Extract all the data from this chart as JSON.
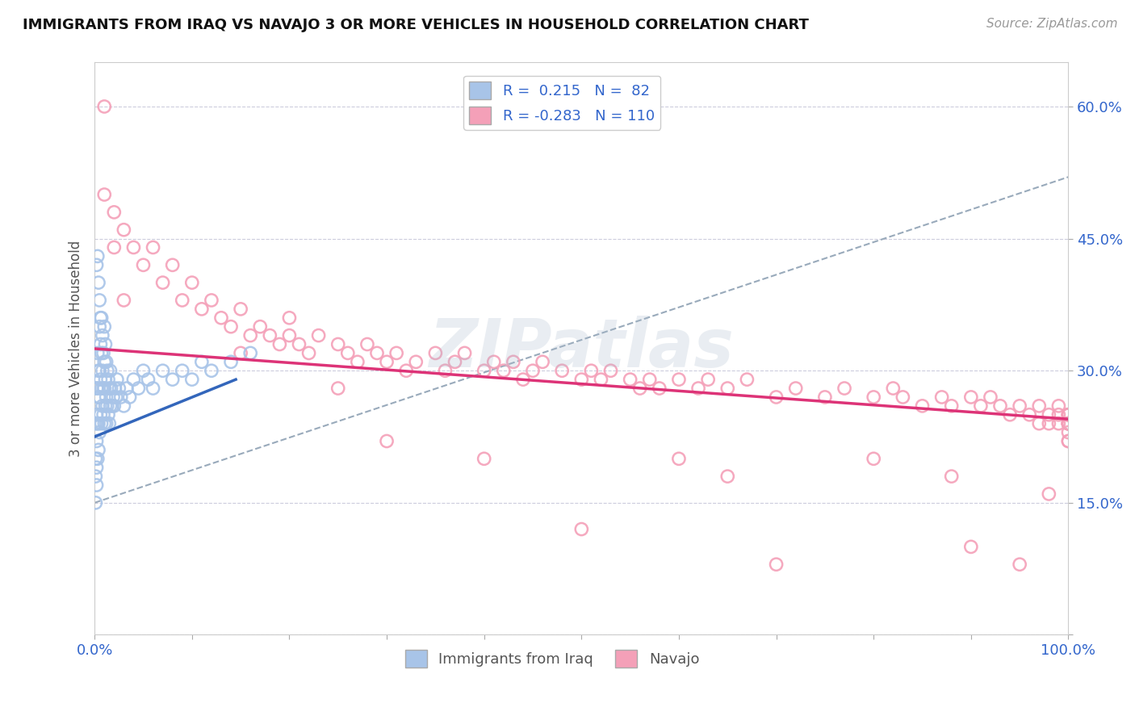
{
  "title": "IMMIGRANTS FROM IRAQ VS NAVAJO 3 OR MORE VEHICLES IN HOUSEHOLD CORRELATION CHART",
  "source": "Source: ZipAtlas.com",
  "ylabel": "3 or more Vehicles in Household",
  "xlim": [
    0.0,
    1.0
  ],
  "ylim": [
    0.0,
    0.65
  ],
  "xticks": [
    0.0,
    0.1,
    0.2,
    0.3,
    0.4,
    0.5,
    0.6,
    0.7,
    0.8,
    0.9,
    1.0
  ],
  "xticklabels": [
    "0.0%",
    "",
    "",
    "",
    "",
    "",
    "",
    "",
    "",
    "",
    "100.0%"
  ],
  "yticks": [
    0.0,
    0.15,
    0.3,
    0.45,
    0.6
  ],
  "yticklabels": [
    "",
    "15.0%",
    "30.0%",
    "45.0%",
    "60.0%"
  ],
  "legend_labels": [
    "Immigrants from Iraq",
    "Navajo"
  ],
  "blue_R": 0.215,
  "blue_N": 82,
  "pink_R": -0.283,
  "pink_N": 110,
  "blue_color": "#a8c4e8",
  "pink_color": "#f4a0b8",
  "blue_line_color": "#3366bb",
  "pink_line_color": "#dd3377",
  "dash_color": "#99aabb",
  "watermark": "ZIPatlas",
  "blue_scatter_x": [
    0.001,
    0.001,
    0.001,
    0.001,
    0.002,
    0.002,
    0.002,
    0.002,
    0.002,
    0.003,
    0.003,
    0.003,
    0.003,
    0.004,
    0.004,
    0.004,
    0.004,
    0.005,
    0.005,
    0.005,
    0.005,
    0.006,
    0.006,
    0.006,
    0.007,
    0.007,
    0.007,
    0.007,
    0.008,
    0.008,
    0.008,
    0.009,
    0.009,
    0.009,
    0.01,
    0.01,
    0.01,
    0.01,
    0.011,
    0.011,
    0.011,
    0.012,
    0.012,
    0.012,
    0.013,
    0.013,
    0.014,
    0.014,
    0.015,
    0.015,
    0.016,
    0.016,
    0.017,
    0.018,
    0.019,
    0.02,
    0.021,
    0.022,
    0.023,
    0.025,
    0.027,
    0.03,
    0.033,
    0.036,
    0.04,
    0.045,
    0.05,
    0.055,
    0.06,
    0.07,
    0.08,
    0.09,
    0.1,
    0.11,
    0.12,
    0.14,
    0.16,
    0.002,
    0.003,
    0.004,
    0.005,
    0.006
  ],
  "blue_scatter_y": [
    0.24,
    0.2,
    0.18,
    0.15,
    0.28,
    0.25,
    0.22,
    0.19,
    0.17,
    0.32,
    0.28,
    0.24,
    0.2,
    0.3,
    0.27,
    0.24,
    0.21,
    0.35,
    0.3,
    0.27,
    0.23,
    0.33,
    0.29,
    0.25,
    0.36,
    0.32,
    0.28,
    0.24,
    0.34,
    0.3,
    0.26,
    0.32,
    0.28,
    0.25,
    0.35,
    0.31,
    0.28,
    0.24,
    0.33,
    0.29,
    0.26,
    0.31,
    0.27,
    0.24,
    0.3,
    0.26,
    0.29,
    0.25,
    0.28,
    0.24,
    0.3,
    0.26,
    0.28,
    0.26,
    0.27,
    0.26,
    0.28,
    0.27,
    0.29,
    0.28,
    0.27,
    0.26,
    0.28,
    0.27,
    0.29,
    0.28,
    0.3,
    0.29,
    0.28,
    0.3,
    0.29,
    0.3,
    0.29,
    0.31,
    0.3,
    0.31,
    0.32,
    0.42,
    0.43,
    0.4,
    0.38,
    0.36
  ],
  "pink_scatter_x": [
    0.01,
    0.01,
    0.02,
    0.03,
    0.04,
    0.05,
    0.06,
    0.07,
    0.08,
    0.09,
    0.1,
    0.11,
    0.12,
    0.13,
    0.14,
    0.15,
    0.16,
    0.17,
    0.18,
    0.19,
    0.2,
    0.21,
    0.22,
    0.23,
    0.25,
    0.26,
    0.27,
    0.28,
    0.29,
    0.3,
    0.31,
    0.32,
    0.33,
    0.35,
    0.36,
    0.37,
    0.38,
    0.4,
    0.41,
    0.42,
    0.43,
    0.44,
    0.45,
    0.46,
    0.48,
    0.5,
    0.51,
    0.52,
    0.53,
    0.55,
    0.56,
    0.57,
    0.58,
    0.6,
    0.62,
    0.63,
    0.65,
    0.67,
    0.7,
    0.72,
    0.75,
    0.77,
    0.8,
    0.82,
    0.83,
    0.85,
    0.87,
    0.88,
    0.9,
    0.91,
    0.92,
    0.93,
    0.94,
    0.95,
    0.96,
    0.97,
    0.97,
    0.98,
    0.98,
    0.99,
    0.99,
    0.99,
    1.0,
    1.0,
    1.0,
    1.0,
    1.0,
    1.0,
    1.0,
    1.0,
    1.0,
    1.0,
    1.0,
    1.0,
    0.02,
    0.03,
    0.15,
    0.2,
    0.25,
    0.3,
    0.4,
    0.5,
    0.6,
    0.65,
    0.7,
    0.8,
    0.88,
    0.9,
    0.95,
    0.98
  ],
  "pink_scatter_y": [
    0.6,
    0.5,
    0.48,
    0.46,
    0.44,
    0.42,
    0.44,
    0.4,
    0.42,
    0.38,
    0.4,
    0.37,
    0.38,
    0.36,
    0.35,
    0.37,
    0.34,
    0.35,
    0.34,
    0.33,
    0.34,
    0.33,
    0.32,
    0.34,
    0.33,
    0.32,
    0.31,
    0.33,
    0.32,
    0.31,
    0.32,
    0.3,
    0.31,
    0.32,
    0.3,
    0.31,
    0.32,
    0.3,
    0.31,
    0.3,
    0.31,
    0.29,
    0.3,
    0.31,
    0.3,
    0.29,
    0.3,
    0.29,
    0.3,
    0.29,
    0.28,
    0.29,
    0.28,
    0.29,
    0.28,
    0.29,
    0.28,
    0.29,
    0.27,
    0.28,
    0.27,
    0.28,
    0.27,
    0.28,
    0.27,
    0.26,
    0.27,
    0.26,
    0.27,
    0.26,
    0.27,
    0.26,
    0.25,
    0.26,
    0.25,
    0.26,
    0.24,
    0.25,
    0.24,
    0.25,
    0.24,
    0.26,
    0.25,
    0.24,
    0.25,
    0.24,
    0.25,
    0.24,
    0.25,
    0.24,
    0.22,
    0.23,
    0.22,
    0.24,
    0.44,
    0.38,
    0.32,
    0.36,
    0.28,
    0.22,
    0.2,
    0.12,
    0.2,
    0.18,
    0.08,
    0.2,
    0.18,
    0.1,
    0.08,
    0.16
  ],
  "blue_line_x": [
    0.0,
    0.145
  ],
  "blue_line_y": [
    0.225,
    0.29
  ],
  "pink_line_x": [
    0.0,
    1.0
  ],
  "pink_line_y": [
    0.325,
    0.245
  ],
  "dash_line_x": [
    0.0,
    1.0
  ],
  "dash_line_y": [
    0.15,
    0.52
  ]
}
